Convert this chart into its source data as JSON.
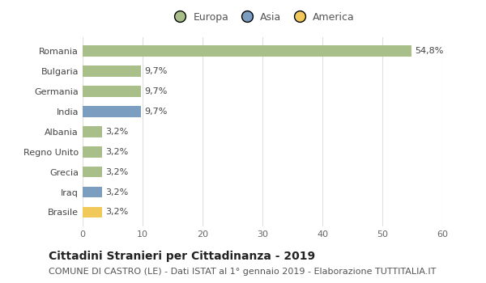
{
  "countries": [
    "Romania",
    "Bulgaria",
    "Germania",
    "India",
    "Albania",
    "Regno Unito",
    "Grecia",
    "Iraq",
    "Brasile"
  ],
  "values": [
    54.8,
    9.7,
    9.7,
    9.7,
    3.2,
    3.2,
    3.2,
    3.2,
    3.2
  ],
  "labels": [
    "54,8%",
    "9,7%",
    "9,7%",
    "9,7%",
    "3,2%",
    "3,2%",
    "3,2%",
    "3,2%",
    "3,2%"
  ],
  "continents": [
    "Europa",
    "Europa",
    "Europa",
    "Asia",
    "Europa",
    "Europa",
    "Europa",
    "Asia",
    "America"
  ],
  "colors": {
    "Europa": "#a8bf8a",
    "Asia": "#7b9ec0",
    "America": "#f0c95a"
  },
  "xlim": [
    0,
    60
  ],
  "xticks": [
    0,
    10,
    20,
    30,
    40,
    50,
    60
  ],
  "title": "Cittadini Stranieri per Cittadinanza - 2019",
  "subtitle": "COMUNE DI CASTRO (LE) - Dati ISTAT al 1° gennaio 2019 - Elaborazione TUTTITALIA.IT",
  "background_color": "#ffffff",
  "grid_color": "#e0e0e0",
  "bar_height": 0.55,
  "title_fontsize": 10,
  "subtitle_fontsize": 8,
  "label_fontsize": 8,
  "tick_fontsize": 8,
  "legend_fontsize": 9
}
